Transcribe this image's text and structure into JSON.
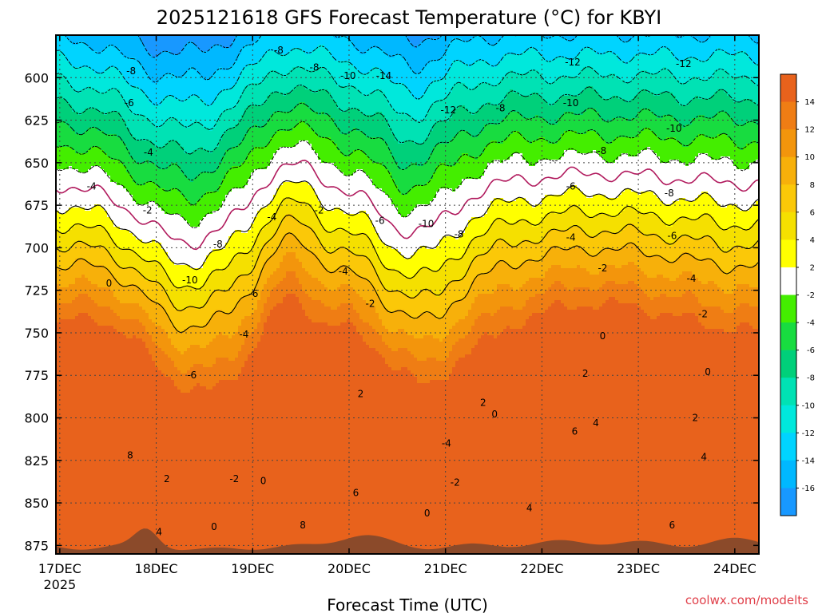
{
  "chart_data": {
    "type": "heatmap",
    "title": "2025121618 GFS Forecast Temperature (°C) for KBYI",
    "xlabel": "Forecast Time (UTC)",
    "ylabel": "",
    "credit": "coolwx.com/modelts",
    "y_ticks": [
      "600",
      "625",
      "650",
      "675",
      "700",
      "725",
      "750",
      "775",
      "800",
      "825",
      "850",
      "875"
    ],
    "y_tick_values": [
      600,
      625,
      650,
      675,
      700,
      725,
      750,
      775,
      800,
      825,
      850,
      875
    ],
    "ylim": [
      575,
      880
    ],
    "x_ticks": [
      "17DEC",
      "18DEC",
      "19DEC",
      "20DEC",
      "21DEC",
      "22DEC",
      "23DEC",
      "24DEC"
    ],
    "x_tick_values": [
      0,
      1,
      2,
      3,
      4,
      5,
      6,
      7
    ],
    "x_year": "2025",
    "xlim": [
      -0.04,
      7.25
    ],
    "grid": true,
    "colorbar": {
      "labels": [
        "14",
        "12",
        "10",
        "8",
        "6",
        "4",
        "2",
        "-2",
        "-4",
        "-6",
        "-8",
        "-10",
        "-12",
        "-14",
        "-16"
      ],
      "colors": [
        "#e8621c",
        "#ef7d14",
        "#f3950c",
        "#f7b00a",
        "#fbc808",
        "#f5e000",
        "#ffff00",
        "#ffffff",
        "#44ee00",
        "#18dc40",
        "#00d07a",
        "#00e2b4",
        "#00e8dc",
        "#00d4ff",
        "#00b8ff",
        "#1898ff"
      ]
    },
    "contour_labels": [
      {
        "text": "-8",
        "x": 2.27,
        "p": 584
      },
      {
        "text": "-8",
        "x": 0.74,
        "p": 596
      },
      {
        "text": "-8",
        "x": 2.64,
        "p": 594
      },
      {
        "text": "-10",
        "x": 2.99,
        "p": 599
      },
      {
        "text": "-14",
        "x": 3.36,
        "p": 599
      },
      {
        "text": "-12",
        "x": 5.32,
        "p": 591
      },
      {
        "text": "-12",
        "x": 6.47,
        "p": 592
      },
      {
        "text": "-6",
        "x": 0.72,
        "p": 615
      },
      {
        "text": "-12",
        "x": 4.03,
        "p": 619
      },
      {
        "text": "-8",
        "x": 4.57,
        "p": 618
      },
      {
        "text": "-10",
        "x": 5.3,
        "p": 615
      },
      {
        "text": "-10",
        "x": 6.37,
        "p": 630
      },
      {
        "text": "-4",
        "x": 0.92,
        "p": 644
      },
      {
        "text": "-8",
        "x": 5.62,
        "p": 643
      },
      {
        "text": "-4",
        "x": 0.33,
        "p": 664
      },
      {
        "text": "-6",
        "x": 5.3,
        "p": 664
      },
      {
        "text": "-8",
        "x": 6.32,
        "p": 668
      },
      {
        "text": "-2",
        "x": 0.91,
        "p": 678
      },
      {
        "text": "-4",
        "x": 2.2,
        "p": 682
      },
      {
        "text": "-2",
        "x": 2.69,
        "p": 678
      },
      {
        "text": "-6",
        "x": 3.32,
        "p": 684
      },
      {
        "text": "-10",
        "x": 3.8,
        "p": 686
      },
      {
        "text": "-8",
        "x": 4.14,
        "p": 692
      },
      {
        "text": "-4",
        "x": 5.3,
        "p": 694
      },
      {
        "text": "-6",
        "x": 6.35,
        "p": 693
      },
      {
        "text": "-8",
        "x": 1.64,
        "p": 698
      },
      {
        "text": "-2",
        "x": 5.63,
        "p": 712
      },
      {
        "text": "-4",
        "x": 6.55,
        "p": 718
      },
      {
        "text": "-10",
        "x": 1.35,
        "p": 719
      },
      {
        "text": "0",
        "x": 0.51,
        "p": 721
      },
      {
        "text": "-4",
        "x": 2.94,
        "p": 714
      },
      {
        "text": "-6",
        "x": 2.01,
        "p": 727
      },
      {
        "text": "-2",
        "x": 3.22,
        "p": 733
      },
      {
        "text": "-2",
        "x": 6.67,
        "p": 739
      },
      {
        "text": "-4",
        "x": 1.91,
        "p": 751
      },
      {
        "text": "0",
        "x": 5.63,
        "p": 752
      },
      {
        "text": "-6",
        "x": 1.37,
        "p": 775
      },
      {
        "text": "2",
        "x": 5.45,
        "p": 774
      },
      {
        "text": "0",
        "x": 6.72,
        "p": 773
      },
      {
        "text": "2",
        "x": 3.12,
        "p": 786
      },
      {
        "text": "2",
        "x": 4.39,
        "p": 791
      },
      {
        "text": "0",
        "x": 4.51,
        "p": 798
      },
      {
        "text": "2",
        "x": 6.59,
        "p": 800
      },
      {
        "text": "4",
        "x": 5.56,
        "p": 803
      },
      {
        "text": "6",
        "x": 5.34,
        "p": 808
      },
      {
        "text": "-4",
        "x": 4.01,
        "p": 815
      },
      {
        "text": "8",
        "x": 0.73,
        "p": 822
      },
      {
        "text": "4",
        "x": 6.68,
        "p": 823
      },
      {
        "text": "-2",
        "x": 1.81,
        "p": 836
      },
      {
        "text": "2",
        "x": 1.11,
        "p": 836
      },
      {
        "text": "0",
        "x": 2.11,
        "p": 837
      },
      {
        "text": "-2",
        "x": 4.1,
        "p": 838
      },
      {
        "text": "6",
        "x": 3.07,
        "p": 844
      },
      {
        "text": "0",
        "x": 3.81,
        "p": 856
      },
      {
        "text": "4",
        "x": 4.87,
        "p": 853
      },
      {
        "text": "4",
        "x": 1.03,
        "p": 867
      },
      {
        "text": "0",
        "x": 1.6,
        "p": 864
      },
      {
        "text": "8",
        "x": 2.52,
        "p": 863
      },
      {
        "text": "6",
        "x": 6.35,
        "p": 863
      }
    ],
    "colorbar_units": "°C"
  }
}
